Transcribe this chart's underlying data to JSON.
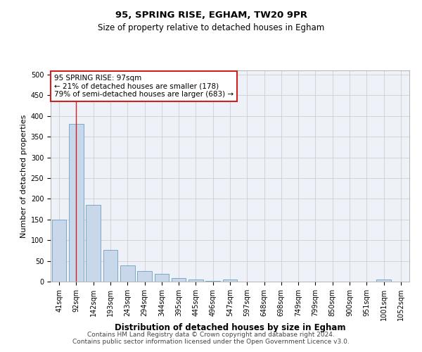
{
  "title_line1": "95, SPRING RISE, EGHAM, TW20 9PR",
  "title_line2": "Size of property relative to detached houses in Egham",
  "xlabel": "Distribution of detached houses by size in Egham",
  "ylabel": "Number of detached properties",
  "bar_labels": [
    "41sqm",
    "92sqm",
    "142sqm",
    "193sqm",
    "243sqm",
    "294sqm",
    "344sqm",
    "395sqm",
    "445sqm",
    "496sqm",
    "547sqm",
    "597sqm",
    "648sqm",
    "698sqm",
    "749sqm",
    "799sqm",
    "850sqm",
    "900sqm",
    "951sqm",
    "1001sqm",
    "1052sqm"
  ],
  "bar_values": [
    150,
    380,
    185,
    77,
    39,
    26,
    18,
    8,
    5,
    1,
    5,
    0,
    0,
    0,
    0,
    0,
    0,
    0,
    0,
    5,
    0
  ],
  "bar_color": "#c8d8ea",
  "bar_edge_color": "#6a9fc0",
  "background_color": "#eef2f8",
  "grid_color": "#c8c8c8",
  "vline_x": 1,
  "vline_color": "#cc2222",
  "ylim": [
    0,
    510
  ],
  "yticks": [
    0,
    50,
    100,
    150,
    200,
    250,
    300,
    350,
    400,
    450,
    500
  ],
  "annotation_text": "95 SPRING RISE: 97sqm\n← 21% of detached houses are smaller (178)\n79% of semi-detached houses are larger (683) →",
  "annotation_box_color": "#ffffff",
  "annotation_box_edge": "#cc2222",
  "footer_text": "Contains HM Land Registry data © Crown copyright and database right 2024.\nContains public sector information licensed under the Open Government Licence v3.0.",
  "title_fontsize": 9.5,
  "subtitle_fontsize": 8.5,
  "xlabel_fontsize": 8.5,
  "ylabel_fontsize": 8,
  "tick_fontsize": 7,
  "annotation_fontsize": 7.5,
  "footer_fontsize": 6.5
}
